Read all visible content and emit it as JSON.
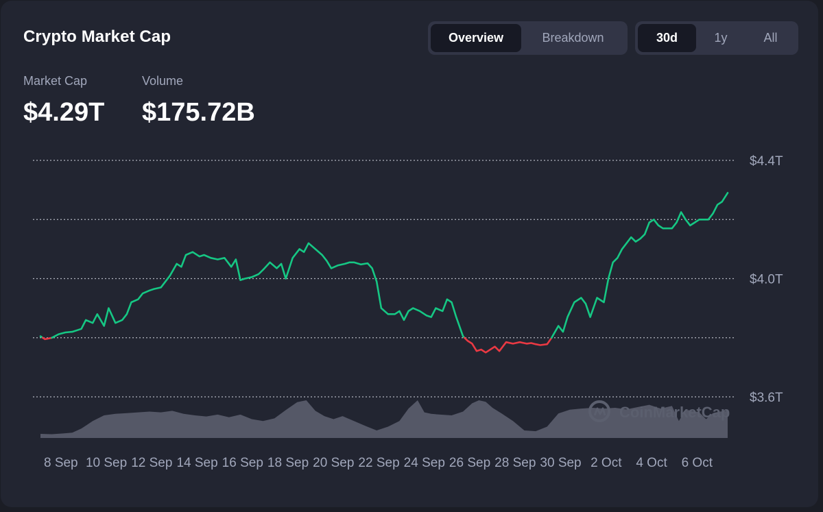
{
  "header": {
    "title": "Crypto Market Cap",
    "view_tabs": [
      {
        "label": "Overview",
        "active": true
      },
      {
        "label": "Breakdown",
        "active": false
      }
    ],
    "range_tabs": [
      {
        "label": "30d",
        "active": true
      },
      {
        "label": "1y",
        "active": false
      },
      {
        "label": "All",
        "active": false
      }
    ]
  },
  "stats": {
    "market_cap": {
      "label": "Market Cap",
      "value": "$4.29T"
    },
    "volume": {
      "label": "Volume",
      "value": "$175.72B"
    }
  },
  "watermark": "CoinMarketCap",
  "colors": {
    "up": "#16c784",
    "down": "#ea3943",
    "volume_fill": "#585b6a",
    "grid": "#c4c7d1",
    "background": "#222531"
  },
  "chart_data": {
    "type": "line",
    "ylim": [
      3.6,
      4.4
    ],
    "y_ticks": [
      {
        "value": 4.4,
        "label": "$4.4T"
      },
      {
        "value": 4.2,
        "label": ""
      },
      {
        "value": 4.0,
        "label": "$4.0T"
      },
      {
        "value": 3.8,
        "label": ""
      },
      {
        "value": 3.6,
        "label": "$3.6T"
      }
    ],
    "grid": "dotted",
    "baseline": 3.8,
    "x_range": [
      7.1,
      37.35
    ],
    "x_ticks": [
      {
        "x": 8,
        "label": "8 Sep"
      },
      {
        "x": 10,
        "label": "10 Sep"
      },
      {
        "x": 12,
        "label": "12 Sep"
      },
      {
        "x": 14,
        "label": "14 Sep"
      },
      {
        "x": 16,
        "label": "16 Sep"
      },
      {
        "x": 18,
        "label": "18 Sep"
      },
      {
        "x": 20,
        "label": "20 Sep"
      },
      {
        "x": 22,
        "label": "22 Sep"
      },
      {
        "x": 24,
        "label": "24 Sep"
      },
      {
        "x": 26,
        "label": "26 Sep"
      },
      {
        "x": 28,
        "label": "28 Sep"
      },
      {
        "x": 30,
        "label": "30 Sep"
      },
      {
        "x": 32,
        "label": "2 Oct"
      },
      {
        "x": 34,
        "label": "4 Oct"
      },
      {
        "x": 36,
        "label": "6 Oct"
      }
    ],
    "series": [
      {
        "x": [
          7.1,
          7.3,
          7.6,
          7.9,
          8.2,
          8.5,
          8.9,
          9.1,
          9.4,
          9.6,
          9.9,
          10.1,
          10.4,
          10.7,
          10.9,
          11.1,
          11.4,
          11.6,
          11.9,
          12.1,
          12.4,
          12.8,
          13.1,
          13.3,
          13.5,
          13.8,
          14.1,
          14.3,
          14.6,
          14.9,
          15.2,
          15.5,
          15.7,
          15.9,
          16.1,
          16.4,
          16.7,
          16.9,
          17.2,
          17.5,
          17.7,
          17.9,
          18.2,
          18.5,
          18.7,
          18.9,
          19.2,
          19.5,
          19.7,
          19.9,
          20.2,
          20.5,
          20.7,
          20.9,
          21.2,
          21.5,
          21.7,
          21.9,
          22.1,
          22.4,
          22.7,
          22.9,
          23.1,
          23.3,
          23.5,
          23.8,
          24.1,
          24.3,
          24.5,
          24.8,
          25.0,
          25.2,
          25.4,
          25.7,
          25.9,
          26.1,
          26.3,
          26.5,
          26.7,
          26.9,
          27.1,
          27.3,
          27.6,
          27.9,
          28.2,
          28.5,
          28.7,
          28.9,
          29.1,
          29.4,
          29.6,
          29.9,
          30.1,
          30.3,
          30.6,
          30.9,
          31.1,
          31.3,
          31.6,
          31.9,
          32.1,
          32.3,
          32.5,
          32.7,
          32.9,
          33.1,
          33.3,
          33.5,
          33.7,
          33.9,
          34.1,
          34.3,
          34.5,
          34.7,
          34.9,
          35.1,
          35.3,
          35.5,
          35.7,
          35.9,
          36.1,
          36.3,
          36.5,
          36.7,
          36.9,
          37.1,
          37.35
        ],
        "values": [
          3.805,
          3.795,
          3.8,
          3.812,
          3.818,
          3.82,
          3.83,
          3.86,
          3.85,
          3.88,
          3.84,
          3.9,
          3.85,
          3.86,
          3.88,
          3.92,
          3.93,
          3.95,
          3.96,
          3.965,
          3.97,
          4.01,
          4.05,
          4.04,
          4.08,
          4.09,
          4.075,
          4.08,
          4.07,
          4.065,
          4.07,
          4.04,
          4.065,
          3.995,
          4.0,
          4.005,
          4.015,
          4.03,
          4.055,
          4.035,
          4.05,
          4.0,
          4.07,
          4.1,
          4.09,
          4.12,
          4.1,
          4.08,
          4.06,
          4.035,
          4.045,
          4.05,
          4.055,
          4.055,
          4.048,
          4.052,
          4.035,
          3.99,
          3.9,
          3.88,
          3.88,
          3.89,
          3.86,
          3.89,
          3.9,
          3.89,
          3.875,
          3.87,
          3.9,
          3.89,
          3.93,
          3.92,
          3.87,
          3.805,
          3.79,
          3.78,
          3.755,
          3.76,
          3.75,
          3.76,
          3.77,
          3.755,
          3.785,
          3.78,
          3.785,
          3.78,
          3.782,
          3.778,
          3.775,
          3.778,
          3.8,
          3.84,
          3.82,
          3.87,
          3.92,
          3.935,
          3.915,
          3.87,
          3.935,
          3.92,
          4.0,
          4.055,
          4.07,
          4.1,
          4.12,
          4.14,
          4.125,
          4.135,
          4.15,
          4.19,
          4.2,
          4.18,
          4.17,
          4.17,
          4.17,
          4.19,
          4.225,
          4.2,
          4.18,
          4.19,
          4.2,
          4.2,
          4.2,
          4.22,
          4.25,
          4.26,
          4.29
        ]
      }
    ],
    "volume": {
      "x": [
        7.1,
        7.6,
        8.1,
        8.5,
        8.9,
        9.4,
        9.9,
        10.4,
        10.9,
        11.4,
        11.9,
        12.4,
        12.9,
        13.4,
        13.9,
        14.4,
        14.9,
        15.4,
        15.9,
        16.4,
        16.9,
        17.4,
        17.9,
        18.4,
        18.8,
        19.2,
        19.6,
        20.0,
        20.4,
        20.9,
        21.4,
        21.9,
        22.4,
        22.9,
        23.3,
        23.7,
        24.0,
        24.3,
        24.7,
        25.2,
        25.7,
        26.1,
        26.4,
        26.7,
        27.0,
        27.4,
        27.9,
        28.4,
        28.9,
        29.4,
        29.9,
        30.4,
        30.9,
        31.4,
        31.9,
        32.4,
        32.9,
        33.4,
        33.9,
        34.4,
        34.9,
        35.2,
        35.5,
        35.8,
        36.1,
        36.4,
        36.7,
        37.0,
        37.35
      ],
      "values": [
        0.11,
        0.1,
        0.12,
        0.14,
        0.25,
        0.45,
        0.6,
        0.64,
        0.66,
        0.68,
        0.7,
        0.68,
        0.72,
        0.64,
        0.6,
        0.57,
        0.62,
        0.55,
        0.62,
        0.5,
        0.45,
        0.52,
        0.74,
        0.95,
        1.0,
        0.72,
        0.58,
        0.5,
        0.58,
        0.45,
        0.32,
        0.2,
        0.3,
        0.45,
        0.78,
        1.0,
        0.68,
        0.64,
        0.62,
        0.6,
        0.7,
        0.92,
        1.0,
        0.96,
        0.8,
        0.65,
        0.45,
        0.2,
        0.18,
        0.3,
        0.65,
        0.75,
        0.78,
        0.8,
        0.78,
        0.8,
        0.76,
        0.82,
        0.88,
        0.78,
        0.85,
        0.45,
        0.75,
        0.72,
        0.68,
        0.5,
        0.66,
        0.7,
        0.72
      ]
    }
  }
}
